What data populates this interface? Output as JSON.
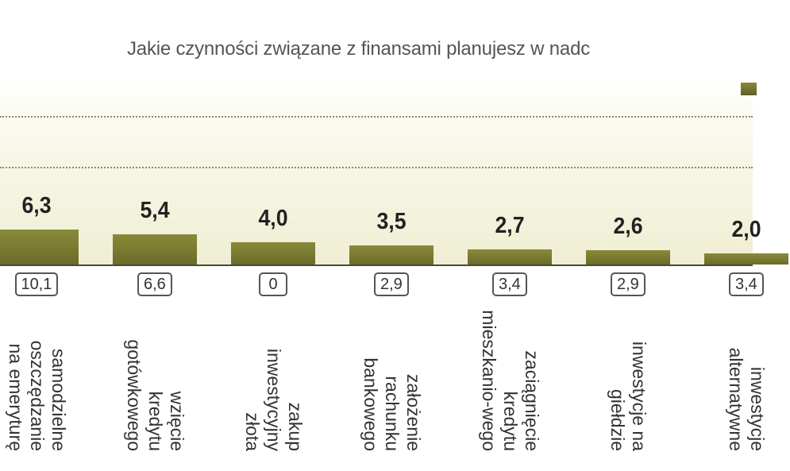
{
  "chart_data": {
    "type": "bar",
    "title": "Jakie czynności związane z finansami planujesz w nadc",
    "categories": [
      "samodzielne oszczędzanie na emeryturę",
      "wzięcie kredytu gotówkowego",
      "zakup inwestycyjny złota",
      "założenie rachunku bankowego",
      "zaciągnięcie kredytu mieszkanio-wego",
      "inwestycje na giełdzie",
      "inwestycje alternatywne"
    ],
    "series": [
      {
        "values": [
          6.3,
          5.4,
          4.0,
          3.5,
          2.7,
          2.6,
          2.0
        ]
      }
    ],
    "value_labels": [
      "6,3",
      "5,4",
      "4,0",
      "3,5",
      "2,7",
      "2,6",
      "2,0"
    ],
    "badges": [
      "10,1",
      "6,6",
      "0",
      "2,9",
      "3,4",
      "2,9",
      "3,4"
    ],
    "bar_color": "#8a8a3a",
    "grid": true
  }
}
